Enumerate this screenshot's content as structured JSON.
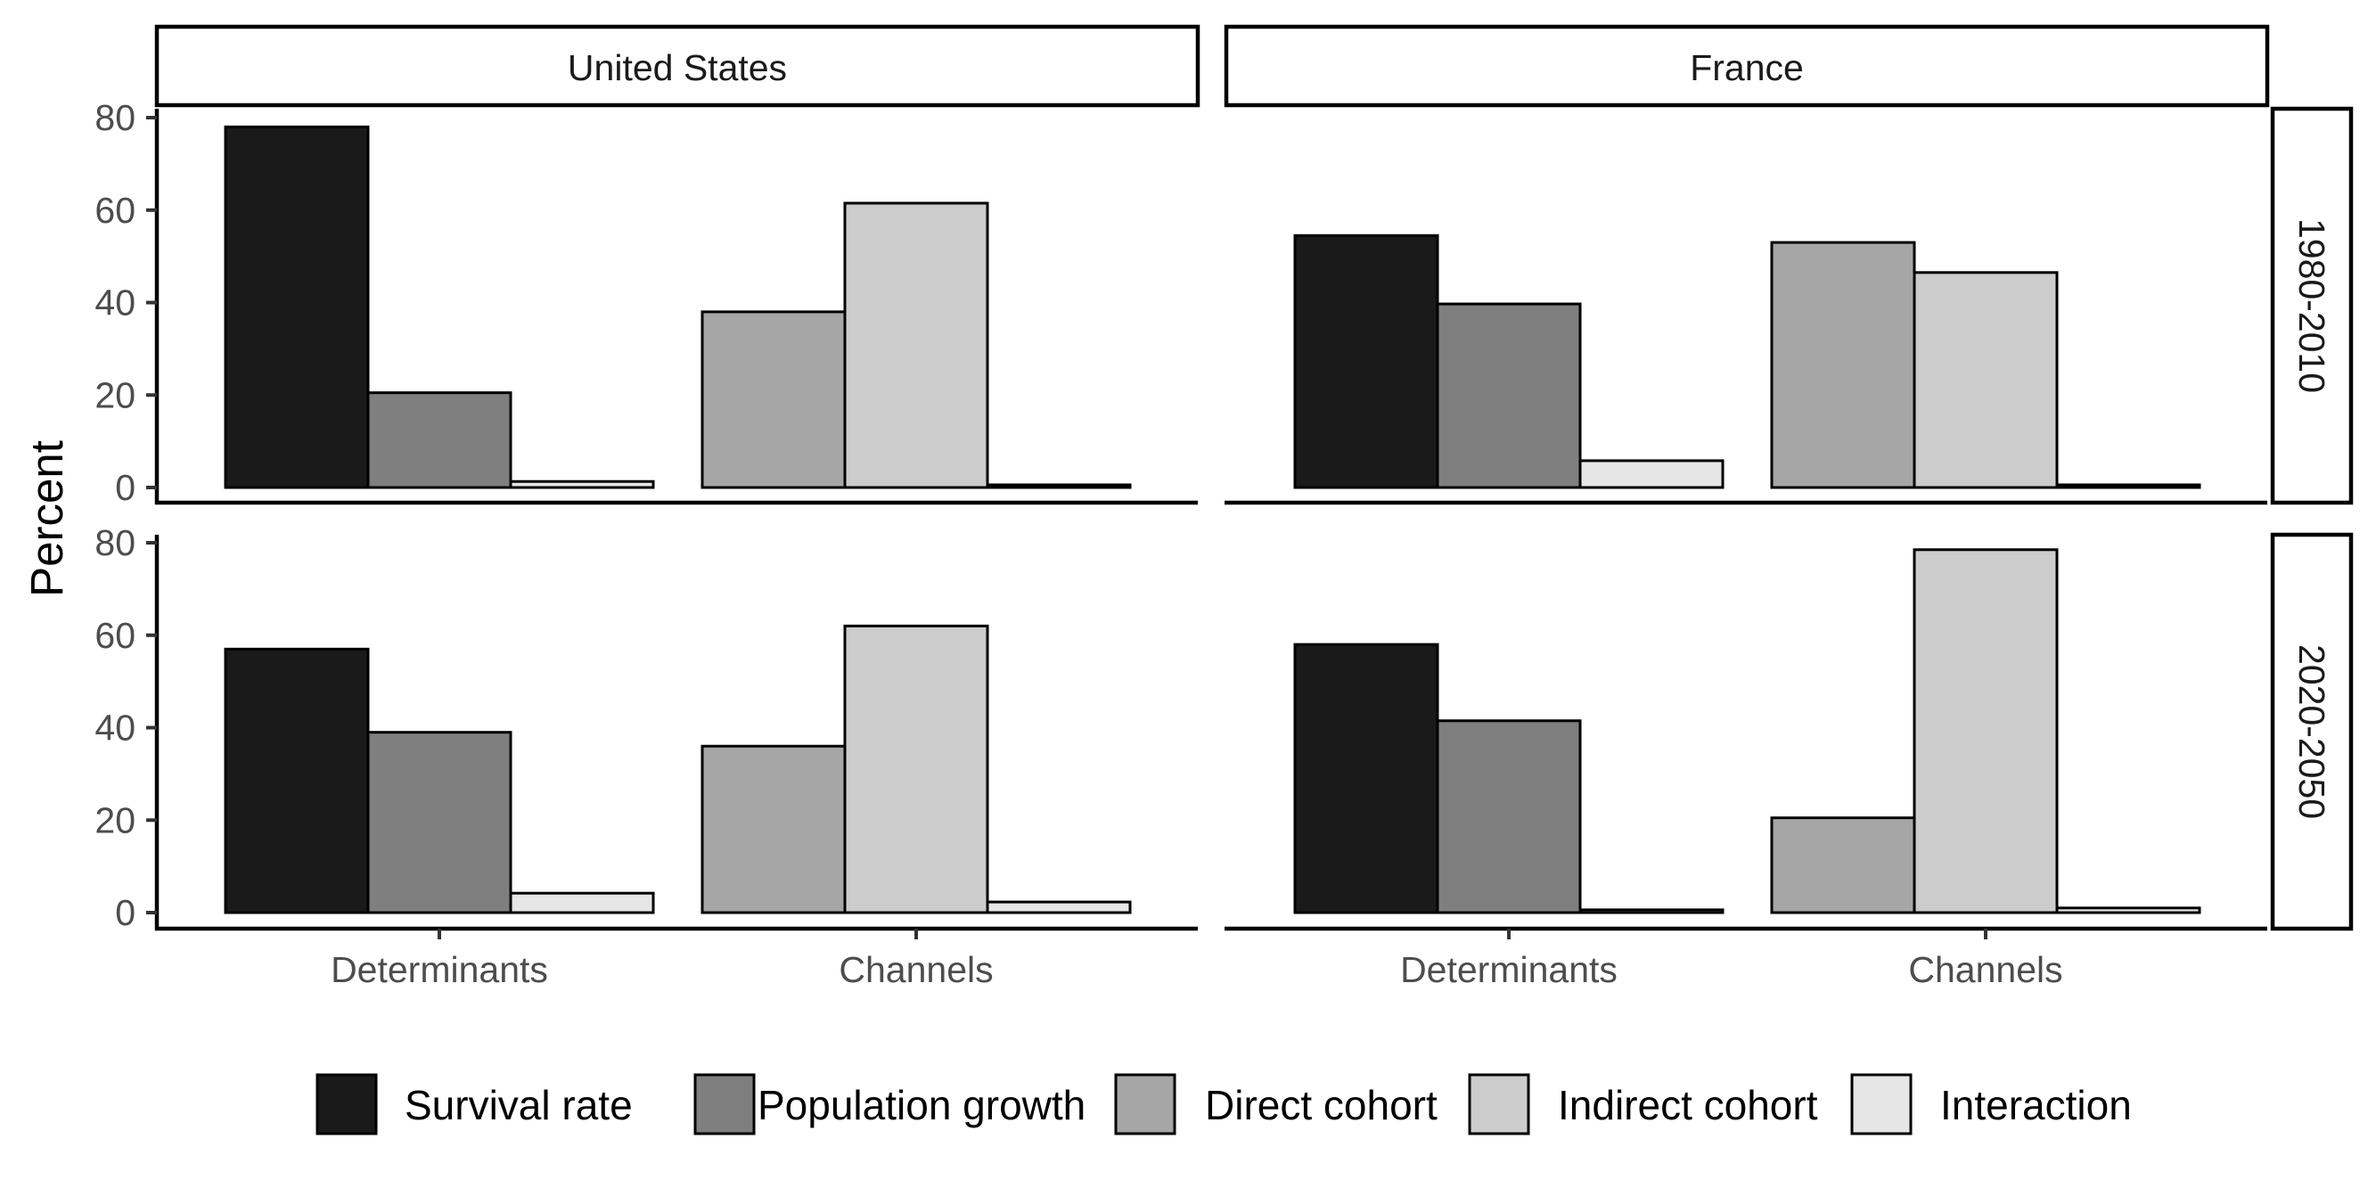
{
  "chart_data": {
    "type": "bar",
    "ylabel": "Percent",
    "xlabel": "",
    "ylim": [
      0,
      80
    ],
    "yticks": [
      "0",
      "20",
      "40",
      "60",
      "80"
    ],
    "ytick_values": [
      0,
      20,
      40,
      60,
      80
    ],
    "columns": [
      "United States",
      "France"
    ],
    "rows": [
      "1980-2010",
      "2020-2050"
    ],
    "groups": [
      "Determinants",
      "Channels"
    ],
    "group_series": {
      "Determinants": [
        "Survival rate",
        "Population growth",
        "Interaction"
      ],
      "Channels": [
        "Direct cohort",
        "Indirect cohort",
        "Interaction"
      ]
    },
    "legend": [
      "Survival rate",
      "Population growth",
      "Direct cohort",
      "Indirect cohort",
      "Interaction"
    ],
    "legend_position": "bottom",
    "grid": false,
    "colors": {
      "Survival rate": "#1a1a1a",
      "Population growth": "#7f7f7f",
      "Direct cohort": "#a6a6a6",
      "Indirect cohort": "#cccccc",
      "Interaction": "#e6e6e6"
    },
    "panels": [
      {
        "column": "United States",
        "row": "1980-2010",
        "Determinants": {
          "Survival rate": 78,
          "Population growth": 20.5,
          "Interaction": 1.3
        },
        "Channels": {
          "Direct cohort": 38,
          "Indirect cohort": 61.5,
          "Interaction": 0.3
        }
      },
      {
        "column": "France",
        "row": "1980-2010",
        "Determinants": {
          "Survival rate": 54.5,
          "Population growth": 39.7,
          "Interaction": 5.8
        },
        "Channels": {
          "Direct cohort": 53,
          "Indirect cohort": 46.5,
          "Interaction": 0.4
        }
      },
      {
        "column": "United States",
        "row": "2020-2050",
        "Determinants": {
          "Survival rate": 57,
          "Population growth": 39,
          "Interaction": 4.2
        },
        "Channels": {
          "Direct cohort": 36,
          "Indirect cohort": 62,
          "Interaction": 2.3
        }
      },
      {
        "column": "France",
        "row": "2020-2050",
        "Determinants": {
          "Survival rate": 58,
          "Population growth": 41.5,
          "Interaction": 0.6
        },
        "Channels": {
          "Direct cohort": 20.5,
          "Indirect cohort": 78.5,
          "Interaction": 1.0
        }
      }
    ]
  }
}
